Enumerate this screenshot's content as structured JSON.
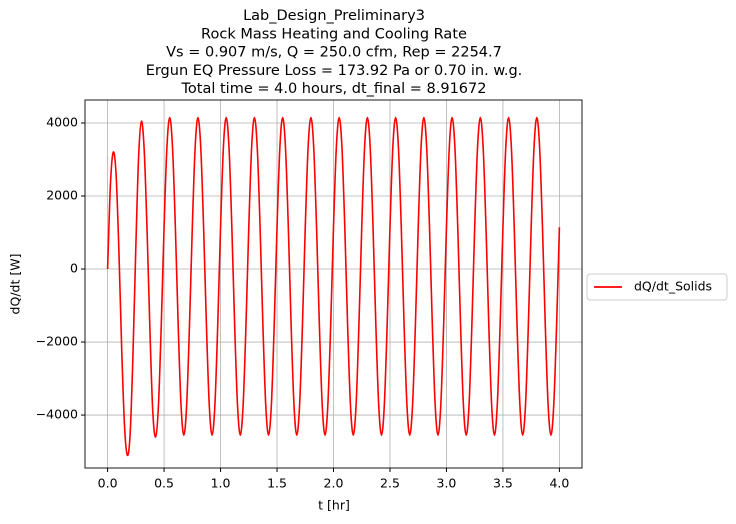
{
  "chart_data": {
    "type": "line",
    "title": [
      "Lab_Design_Preliminary3",
      "Rock Mass Heating and Cooling Rate",
      "Vs = 0.907 m/s, Q = 250.0 cfm, Rep = 2254.7",
      "Ergun EQ Pressure Loss = 173.92 Pa or 0.70 in. w.g.",
      "Total time = 4.0 hours, dt_final = 8.91672"
    ],
    "xlabel": "t [hr]",
    "ylabel": "dQ/dt [W]",
    "xlim": [
      -0.2,
      4.2
    ],
    "ylim": [
      -5450,
      4630
    ],
    "xticks": [
      {
        "value": 0,
        "label": "0.0"
      },
      0.5,
      {
        "value": 1,
        "label": "1.0"
      },
      1.5,
      {
        "value": 2,
        "label": "2.0"
      },
      2.5,
      {
        "value": 3,
        "label": "3.0"
      },
      3.5,
      {
        "value": 4,
        "label": "4.0"
      }
    ],
    "yticks": [
      {
        "value": -4000,
        "label": "−4000"
      },
      {
        "value": -2000,
        "label": "−2000"
      },
      0,
      2000,
      4000
    ],
    "grid": true,
    "legend": "outside right",
    "x": [
      0,
      0.025,
      0.05,
      0.075,
      0.1,
      0.125,
      0.15,
      0.175,
      0.2,
      0.225,
      0.25,
      0.275,
      0.3,
      0.325,
      0.35,
      0.375,
      0.4,
      0.425,
      0.45,
      0.475,
      0.5,
      0.525,
      0.55,
      0.575,
      0.6,
      0.625,
      0.65,
      0.675,
      0.7,
      0.725,
      0.75,
      0.775,
      0.8,
      0.825,
      0.85,
      0.875,
      0.9,
      0.925,
      0.95,
      0.975,
      1,
      1.025,
      1.05,
      1.075,
      1.1,
      1.125,
      1.15,
      1.175,
      1.2,
      1.225,
      1.25,
      1.275,
      1.3,
      1.325,
      1.35,
      1.375,
      1.4,
      1.425,
      1.45,
      1.475,
      1.5,
      1.525,
      1.55,
      1.575,
      1.6,
      1.625,
      1.65,
      1.675,
      1.7,
      1.725,
      1.75,
      1.775,
      1.8,
      1.825,
      1.85,
      1.875,
      1.9,
      1.925,
      1.95,
      1.975,
      2,
      2.025,
      2.05,
      2.075,
      2.1,
      2.125,
      2.15,
      2.175,
      2.2,
      2.225,
      2.25,
      2.275,
      2.3,
      2.325,
      2.35,
      2.375,
      2.4,
      2.425,
      2.45,
      2.475,
      2.5,
      2.525,
      2.55,
      2.575,
      2.6,
      2.625,
      2.65,
      2.675,
      2.7,
      2.725,
      2.75,
      2.775,
      2.8,
      2.825,
      2.85,
      2.875,
      2.9,
      2.925,
      2.95,
      2.975,
      3,
      3.025,
      3.05,
      3.075,
      3.1,
      3.125,
      3.15,
      3.175,
      3.2,
      3.225,
      3.25,
      3.275,
      3.3,
      3.325,
      3.35,
      3.375,
      3.4,
      3.425,
      3.45,
      3.475,
      3.5,
      3.525,
      3.55,
      3.575,
      3.6,
      3.625,
      3.65,
      3.675,
      3.7,
      3.725,
      3.75,
      3.775,
      3.8,
      3.825,
      3.85,
      3.875,
      3.9,
      3.925,
      3.95,
      3.975,
      4
    ],
    "series": [
      {
        "name": "dQ/dt_Solids",
        "color": "#ff0000",
        "values": [
          0,
          2300,
          3200,
          2600,
          500,
          -2200,
          -4300,
          -5100,
          -4500,
          -2300,
          600,
          3100,
          4050,
          3200,
          1000,
          -1700,
          -3900,
          -4600,
          -3750,
          -1550,
          1144,
          3319,
          4150,
          3319,
          1144,
          -1544,
          -3719,
          -4550,
          -3719,
          -1544,
          1144,
          3319,
          4150,
          3319,
          1144,
          -1544,
          -3719,
          -4550,
          -3719,
          -1544,
          1144,
          3319,
          4150,
          3319,
          1144,
          -1544,
          -3719,
          -4550,
          -3719,
          -1544,
          1144,
          3319,
          4150,
          3319,
          1144,
          -1544,
          -3719,
          -4550,
          -3719,
          -1544,
          1144,
          3319,
          4150,
          3319,
          1144,
          -1544,
          -3719,
          -4550,
          -3719,
          -1544,
          1144,
          3319,
          4150,
          3319,
          1144,
          -1544,
          -3719,
          -4550,
          -3719,
          -1544,
          1144,
          3319,
          4150,
          3319,
          1144,
          -1544,
          -3719,
          -4550,
          -3719,
          -1544,
          1144,
          3319,
          4150,
          3319,
          1144,
          -1544,
          -3719,
          -4550,
          -3719,
          -1544,
          1144,
          3319,
          4150,
          3319,
          1144,
          -1544,
          -3719,
          -4550,
          -3719,
          -1544,
          1144,
          3319,
          4150,
          3319,
          1144,
          -1544,
          -3719,
          -4550,
          -3719,
          -1544,
          1144,
          3319,
          4150,
          3319,
          1144,
          -1544,
          -3719,
          -4550,
          -3719,
          -1544,
          1144,
          3319,
          4150,
          3319,
          1144,
          -1544,
          -3719,
          -4550,
          -3719,
          -1544,
          1144,
          3319,
          4150,
          3319,
          1144,
          -1544,
          -3719,
          -4550,
          -3719,
          -1544,
          1144,
          3319,
          4150,
          3319,
          1144,
          -1544,
          -3719,
          -4550,
          -3719,
          -1544,
          1144
        ]
      }
    ]
  }
}
